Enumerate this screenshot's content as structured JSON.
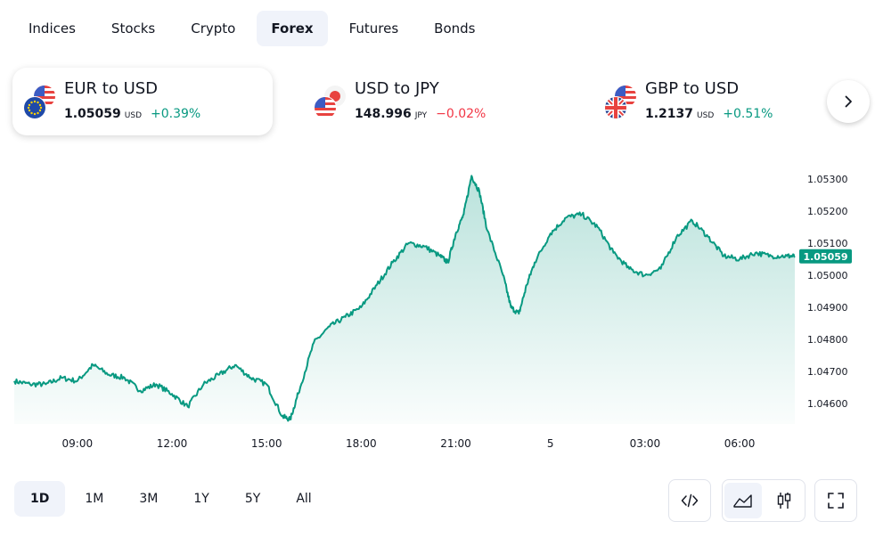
{
  "tabs": [
    "Indices",
    "Stocks",
    "Crypto",
    "Forex",
    "Futures",
    "Bonds"
  ],
  "active_tab": "Forex",
  "cards": [
    {
      "title": "EUR to USD",
      "price": "1.05059",
      "currency": "USD",
      "change": "+0.39%",
      "change_dir": "pos",
      "flags": [
        "us-flag-icon",
        "eu-flag-icon"
      ]
    },
    {
      "title": "USD to JPY",
      "price": "148.996",
      "currency": "JPY",
      "change": "−0.02%",
      "change_dir": "neg",
      "flags": [
        "jp-flag-icon",
        "us-flag-icon"
      ]
    },
    {
      "title": "GBP to USD",
      "price": "1.2137",
      "currency": "USD",
      "change": "+0.51%",
      "change_dir": "pos",
      "flags": [
        "us-flag-icon",
        "uk-flag-icon"
      ]
    }
  ],
  "chart_data": {
    "type": "area",
    "series": [
      {
        "name": "EUR to USD"
      }
    ],
    "x_ticks": [
      "09:00",
      "12:00",
      "15:00",
      "18:00",
      "21:00",
      "5",
      "03:00",
      "06:00"
    ],
    "y_ticks": [
      "1.05300",
      "1.05200",
      "1.05100",
      "1.05000",
      "1.04900",
      "1.04800",
      "1.04700",
      "1.04600"
    ],
    "ylim": [
      1.0452,
      1.0535
    ],
    "last_value": "1.05059",
    "x": [
      7.0,
      7.5,
      8.0,
      8.5,
      9.0,
      9.5,
      10.0,
      10.5,
      11.0,
      11.5,
      12.0,
      12.5,
      13.0,
      13.5,
      14.0,
      14.5,
      15.0,
      15.5,
      15.75,
      16.0,
      16.5,
      17.0,
      17.5,
      18.0,
      18.5,
      19.0,
      19.5,
      20.0,
      20.5,
      20.75,
      21.0,
      21.25,
      21.5,
      21.75,
      22.0,
      22.5,
      22.75,
      23.0,
      23.25,
      23.5,
      24.0,
      24.5,
      25.0,
      25.5,
      26.0,
      26.5,
      27.0,
      27.5,
      28.0,
      28.5,
      29.0,
      29.5,
      30.0,
      30.5,
      31.0,
      31.5,
      31.75
    ],
    "values": [
      1.0467,
      1.0466,
      1.0466,
      1.0468,
      1.0467,
      1.0472,
      1.0469,
      1.0468,
      1.0464,
      1.0466,
      1.0463,
      1.0459,
      1.0466,
      1.0469,
      1.0472,
      1.0468,
      1.0466,
      1.0456,
      1.0455,
      1.0463,
      1.0479,
      1.0484,
      1.0487,
      1.049,
      1.0497,
      1.0504,
      1.051,
      1.0509,
      1.0506,
      1.0504,
      1.0513,
      1.0519,
      1.0531,
      1.0526,
      1.0514,
      1.05,
      1.049,
      1.0488,
      1.0497,
      1.0504,
      1.0513,
      1.0518,
      1.0519,
      1.0515,
      1.0507,
      1.0502,
      1.05,
      1.0502,
      1.0512,
      1.0517,
      1.0512,
      1.0506,
      1.0505,
      1.0507,
      1.0506,
      1.0506,
      1.05059
    ]
  },
  "ranges": [
    "1D",
    "1M",
    "3M",
    "1Y",
    "5Y",
    "All"
  ],
  "active_range": "1D",
  "tools": {
    "embed": "code-embed-icon",
    "chart_types": [
      "area-chart-icon",
      "candlestick-chart-icon"
    ],
    "active_chart_type": "area-chart-icon",
    "fullscreen": "fullscreen-icon",
    "next": "chevron-right-icon"
  },
  "colors": {
    "line": "#089981",
    "positive": "#089981",
    "negative": "#f23645",
    "axis_text": "#131722"
  }
}
